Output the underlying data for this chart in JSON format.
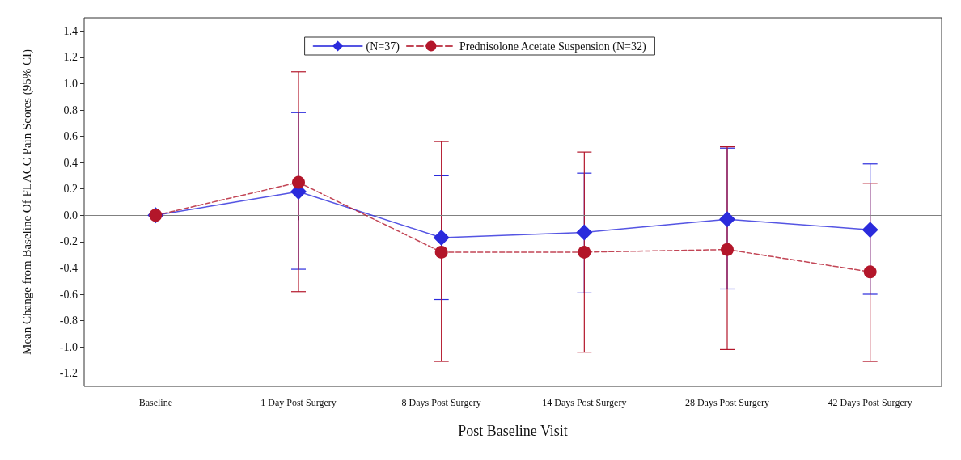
{
  "chart_data": {
    "type": "line",
    "xlabel": "Post Baseline Visit",
    "ylabel": "Mean Change from Baseline Of FLACC Pain Scores (95% CI)",
    "categories": [
      "Baseline",
      "1 Day Post Surgery",
      "8 Days Post Surgery",
      "14 Days Post Surgery",
      "28 Days Post Surgery",
      "42 Days Post Surgery"
    ],
    "series": [
      {
        "name": "(N=37)",
        "color": "#2b2bdc",
        "marker": "diamond",
        "line_style": "solid",
        "values": [
          0,
          0.18,
          -0.17,
          -0.13,
          -0.03,
          -0.11
        ],
        "errors": [
          null,
          [
            -0.41,
            0.78
          ],
          [
            -0.64,
            0.3
          ],
          [
            -0.59,
            0.32
          ],
          [
            -0.56,
            0.51
          ],
          [
            -0.6,
            0.39
          ]
        ]
      },
      {
        "name": "Prednisolone Acetate Suspension (N=32)",
        "color": "#b3162a",
        "marker": "circle",
        "line_style": "dashed",
        "values": [
          0,
          0.25,
          -0.28,
          -0.28,
          -0.26,
          -0.43
        ],
        "errors": [
          null,
          [
            -0.58,
            1.09
          ],
          [
            -1.11,
            0.56
          ],
          [
            -1.04,
            0.48
          ],
          [
            -1.02,
            0.52
          ],
          [
            -1.11,
            0.24
          ]
        ]
      }
    ],
    "ylim": [
      -1.3,
      1.5
    ],
    "yticks": [
      -1.2,
      {
        "value": -1,
        "label": "-1.0"
      },
      -0.8,
      -0.6,
      -0.4,
      -0.2,
      {
        "value": 0,
        "label": "0.0"
      },
      0.2,
      0.4,
      0.6,
      0.8,
      {
        "value": 1,
        "label": "1.0"
      },
      1.2,
      1.4
    ],
    "ref_lines": [
      {
        "axis": "y",
        "value": 0,
        "color": "#808080"
      }
    ],
    "legend": "top",
    "grid": false
  }
}
